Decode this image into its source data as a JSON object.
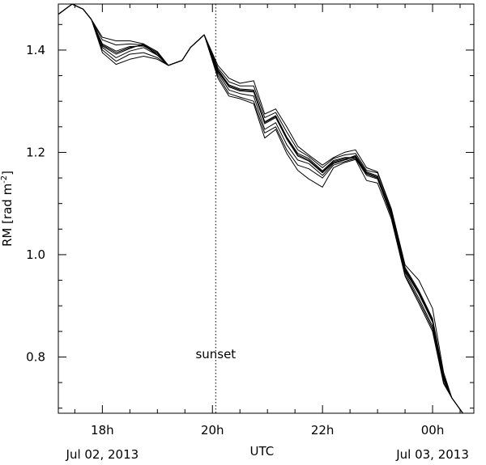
{
  "chart_data": {
    "type": "line",
    "xlabel": "UTC",
    "ylabel": "RM [rad m",
    "ylabel_sup": "-2",
    "ylabel_close": "]",
    "date_left": "Jul 02, 2013",
    "date_right": "Jul 03, 2013",
    "xlim": [
      17.2,
      24.75
    ],
    "ylim": [
      0.69,
      1.49
    ],
    "x_ticks": [
      {
        "v": 18,
        "label": "18h"
      },
      {
        "v": 20,
        "label": "20h"
      },
      {
        "v": 22,
        "label": "22h"
      },
      {
        "v": 24,
        "label": "00h"
      }
    ],
    "y_ticks": [
      {
        "v": 0.8,
        "label": "0.8"
      },
      {
        "v": 1.0,
        "label": "1.0"
      },
      {
        "v": 1.2,
        "label": "1.2"
      },
      {
        "v": 1.4,
        "label": "1.4"
      }
    ],
    "annotation": {
      "text": "sunset",
      "x": 20.06
    },
    "x": [
      17.2,
      17.45,
      17.65,
      17.8,
      18.0,
      18.25,
      18.5,
      18.75,
      19.0,
      19.2,
      19.45,
      19.6,
      19.85,
      20.1,
      20.3,
      20.5,
      20.75,
      20.95,
      21.15,
      21.35,
      21.55,
      21.75,
      22.0,
      22.2,
      22.4,
      22.6,
      22.8,
      23.0,
      23.25,
      23.5,
      23.75,
      24.0,
      24.2,
      24.35,
      24.55,
      24.75
    ],
    "series": [
      {
        "values": [
          1.47,
          1.49,
          1.48,
          1.46,
          1.41,
          1.395,
          1.405,
          1.41,
          1.395,
          1.37,
          1.38,
          1.405,
          1.43,
          1.36,
          1.33,
          1.322,
          1.32,
          1.258,
          1.27,
          1.228,
          1.195,
          1.185,
          1.162,
          1.182,
          1.188,
          1.192,
          1.16,
          1.152,
          1.082,
          0.97,
          0.925,
          0.87,
          0.76,
          0.72,
          0.69,
          0.69
        ]
      },
      {
        "values": [
          1.47,
          1.49,
          1.48,
          1.46,
          1.412,
          1.398,
          1.407,
          1.408,
          1.393,
          1.37,
          1.38,
          1.405,
          1.43,
          1.362,
          1.332,
          1.324,
          1.322,
          1.26,
          1.272,
          1.23,
          1.198,
          1.188,
          1.164,
          1.184,
          1.19,
          1.19,
          1.158,
          1.15,
          1.08,
          0.968,
          0.923,
          0.868,
          0.758,
          0.72,
          0.69,
          0.69
        ]
      },
      {
        "values": [
          1.47,
          1.49,
          1.48,
          1.46,
          1.408,
          1.392,
          1.403,
          1.412,
          1.397,
          1.37,
          1.38,
          1.405,
          1.43,
          1.358,
          1.328,
          1.32,
          1.318,
          1.256,
          1.268,
          1.226,
          1.193,
          1.183,
          1.16,
          1.18,
          1.186,
          1.194,
          1.162,
          1.154,
          1.084,
          0.972,
          0.927,
          0.872,
          0.762,
          0.72,
          0.69,
          0.69
        ]
      },
      {
        "values": [
          1.47,
          1.49,
          1.48,
          1.46,
          1.42,
          1.41,
          1.412,
          1.41,
          1.39,
          1.37,
          1.38,
          1.405,
          1.43,
          1.365,
          1.338,
          1.33,
          1.33,
          1.268,
          1.278,
          1.24,
          1.205,
          1.192,
          1.17,
          1.188,
          1.195,
          1.198,
          1.165,
          1.16,
          1.088,
          0.975,
          0.93,
          0.875,
          0.765,
          0.72,
          0.69,
          0.69
        ]
      },
      {
        "values": [
          1.47,
          1.49,
          1.48,
          1.46,
          1.425,
          1.418,
          1.418,
          1.412,
          1.39,
          1.37,
          1.38,
          1.405,
          1.43,
          1.37,
          1.345,
          1.335,
          1.34,
          1.275,
          1.285,
          1.25,
          1.212,
          1.195,
          1.175,
          1.19,
          1.2,
          1.205,
          1.17,
          1.162,
          1.09,
          0.98,
          0.95,
          0.895,
          0.77,
          0.72,
          0.69,
          0.69
        ]
      },
      {
        "values": [
          1.47,
          1.49,
          1.48,
          1.46,
          1.405,
          1.385,
          1.398,
          1.405,
          1.39,
          1.37,
          1.38,
          1.405,
          1.43,
          1.355,
          1.322,
          1.315,
          1.31,
          1.245,
          1.258,
          1.215,
          1.185,
          1.178,
          1.155,
          1.178,
          1.185,
          1.19,
          1.158,
          1.15,
          1.078,
          0.965,
          0.915,
          0.86,
          0.755,
          0.72,
          0.69,
          0.69
        ]
      },
      {
        "values": [
          1.47,
          1.49,
          1.48,
          1.46,
          1.4,
          1.378,
          1.392,
          1.395,
          1.385,
          1.37,
          1.38,
          1.405,
          1.43,
          1.35,
          1.315,
          1.308,
          1.3,
          1.238,
          1.25,
          1.205,
          1.175,
          1.168,
          1.15,
          1.175,
          1.182,
          1.188,
          1.155,
          1.148,
          1.075,
          0.96,
          0.91,
          0.855,
          0.75,
          0.72,
          0.69,
          0.69
        ]
      },
      {
        "values": [
          1.47,
          1.49,
          1.48,
          1.46,
          1.395,
          1.372,
          1.382,
          1.388,
          1.382,
          1.37,
          1.38,
          1.405,
          1.43,
          1.345,
          1.31,
          1.305,
          1.295,
          1.228,
          1.245,
          1.198,
          1.165,
          1.148,
          1.132,
          1.17,
          1.18,
          1.186,
          1.145,
          1.14,
          1.07,
          0.958,
          0.905,
          0.85,
          0.748,
          0.72,
          0.69,
          0.69
        ]
      }
    ]
  }
}
